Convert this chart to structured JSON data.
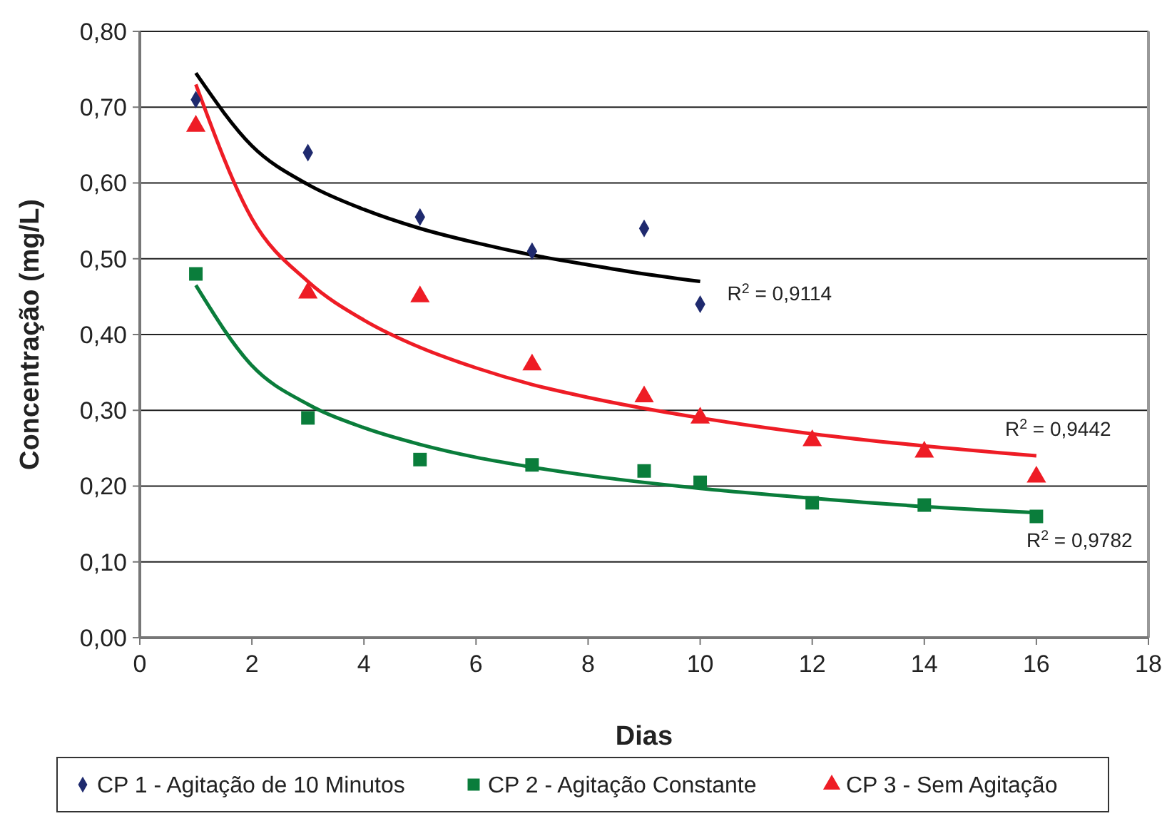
{
  "chart_data": {
    "type": "scatter",
    "xlabel": "Dias",
    "ylabel": "Concentração (mg/L)",
    "xlim": [
      0,
      18
    ],
    "xticks": [
      0,
      2,
      4,
      6,
      8,
      10,
      12,
      14,
      16,
      18
    ],
    "ylim": [
      0,
      0.8
    ],
    "yticks": [
      {
        "value": 0,
        "label": "0,00"
      },
      {
        "value": 0.1,
        "label": "0,10"
      },
      {
        "value": 0.2,
        "label": "0,20"
      },
      {
        "value": 0.3,
        "label": "0,30"
      },
      {
        "value": 0.4,
        "label": "0,40"
      },
      {
        "value": 0.5,
        "label": "0,50"
      },
      {
        "value": 0.6,
        "label": "0,60"
      },
      {
        "value": 0.7,
        "label": "0,70"
      },
      {
        "value": 0.8,
        "label": "0,80"
      }
    ],
    "grid": "y",
    "legend": "bottom",
    "series": [
      {
        "name": "CP 1 - Agitação de 10 Minutos",
        "color": "#1f2a6e",
        "marker": "diamond",
        "x": [
          1,
          3,
          5,
          7,
          9,
          10
        ],
        "values": [
          0.71,
          0.64,
          0.555,
          0.51,
          0.54,
          0.44
        ]
      },
      {
        "name": "CP 2 - Agitação Constante",
        "color": "#0a7d3b",
        "marker": "square",
        "x": [
          1,
          3,
          5,
          7,
          9,
          10,
          12,
          14,
          16
        ],
        "values": [
          0.48,
          0.29,
          0.235,
          0.228,
          0.22,
          0.205,
          0.178,
          0.175,
          0.16
        ]
      },
      {
        "name": "CP 3 - Sem Agitação",
        "color": "#ee1c25",
        "marker": "triangle",
        "x": [
          1,
          3,
          5,
          7,
          9,
          10,
          12,
          14,
          16
        ],
        "values": [
          0.675,
          0.455,
          0.45,
          0.36,
          0.318,
          0.29,
          0.26,
          0.245,
          0.212
        ]
      },
      {
        "type": "line",
        "color": "#000000",
        "marker": "none",
        "x": [
          1,
          2,
          3,
          4,
          5,
          6,
          7,
          8,
          9,
          10
        ],
        "values": [
          0.745,
          0.649,
          0.598,
          0.565,
          0.54,
          0.521,
          0.505,
          0.492,
          0.48,
          0.47
        ]
      },
      {
        "type": "line",
        "color": "#ee1c25",
        "marker": "none",
        "x": [
          1,
          2,
          3,
          4,
          5,
          6,
          7,
          8,
          10,
          12,
          14,
          16
        ],
        "values": [
          0.73,
          0.553,
          0.47,
          0.419,
          0.383,
          0.356,
          0.334,
          0.317,
          0.29,
          0.269,
          0.253,
          0.24
        ]
      },
      {
        "type": "line",
        "color": "#0a7d3b",
        "marker": "none",
        "x": [
          1,
          2,
          3,
          4,
          5,
          6,
          7,
          8,
          10,
          12,
          14,
          16
        ],
        "values": [
          0.465,
          0.359,
          0.308,
          0.277,
          0.255,
          0.238,
          0.225,
          0.214,
          0.197,
          0.184,
          0.173,
          0.165
        ]
      }
    ],
    "annotations": [
      "R$^{2}$ = 0,9114",
      "R$^{2}$ = 0,9442",
      "R$^{2}$ = 0,9782"
    ]
  }
}
